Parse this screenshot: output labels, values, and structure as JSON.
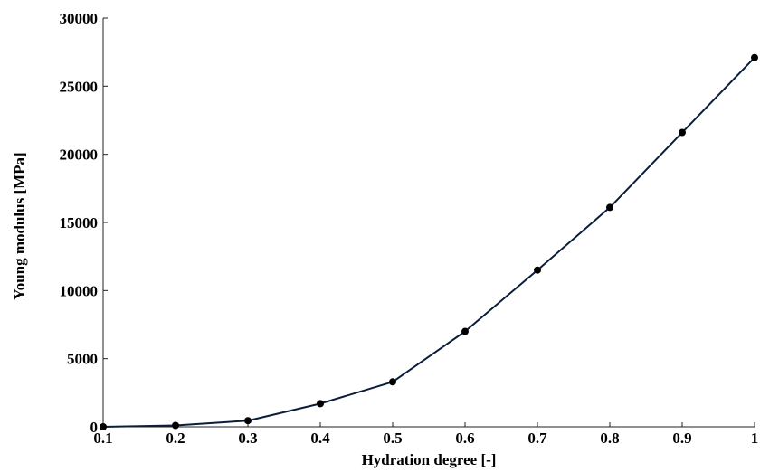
{
  "chart_data": {
    "type": "line",
    "title": "",
    "xlabel": "Hydration degree [-]",
    "ylabel": "Young modulus [MPa]",
    "xlim": [
      0.1,
      1
    ],
    "ylim": [
      0,
      30000
    ],
    "x_ticks": [
      "0.1",
      "0.2",
      "0.3",
      "0.4",
      "0.5",
      "0.6",
      "0.7",
      "0.8",
      "0.9",
      "1"
    ],
    "y_ticks": [
      "0",
      "5000",
      "10000",
      "15000",
      "20000",
      "25000",
      "30000"
    ],
    "grid": false,
    "legend": "none",
    "series": [
      {
        "x": [
          0.1,
          0.2,
          0.3,
          0.4,
          0.5,
          0.6,
          0.7,
          0.8,
          0.9,
          1.0
        ],
        "values": [
          0,
          100,
          450,
          1700,
          3300,
          7000,
          11500,
          16100,
          21600,
          27100
        ],
        "color": "#0b1d3a",
        "marker": "circle"
      }
    ]
  }
}
